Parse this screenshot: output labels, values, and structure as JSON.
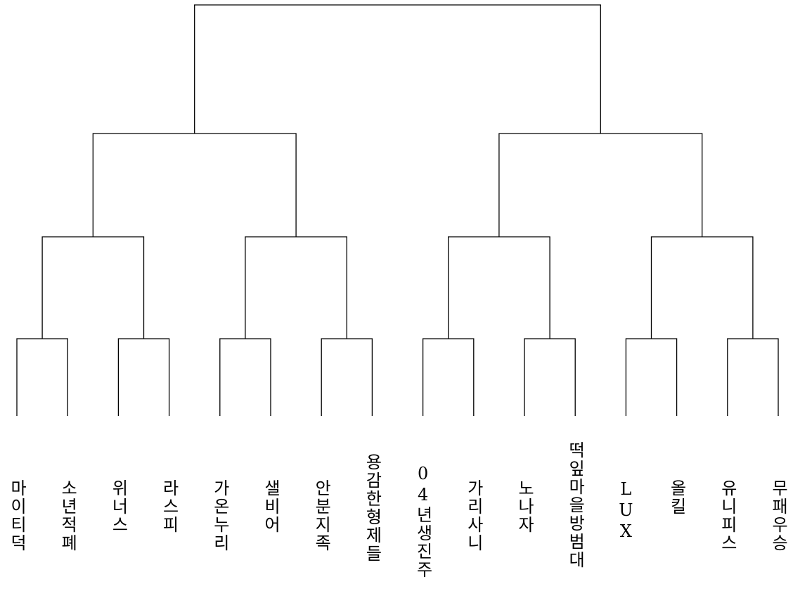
{
  "teams": [
    "마이티덕",
    "소년적폐",
    "위너스",
    "라스피",
    "가온누리",
    "샐비어",
    "안분지족",
    "용감한형제들",
    "04년생진주",
    "가리사니",
    "노나자",
    "떡잎마을방범대",
    "LUX",
    "올킬",
    "유니피스",
    "무패우승"
  ],
  "colors": {
    "line": "#000000",
    "text": "#000000",
    "background": "#ffffff"
  }
}
